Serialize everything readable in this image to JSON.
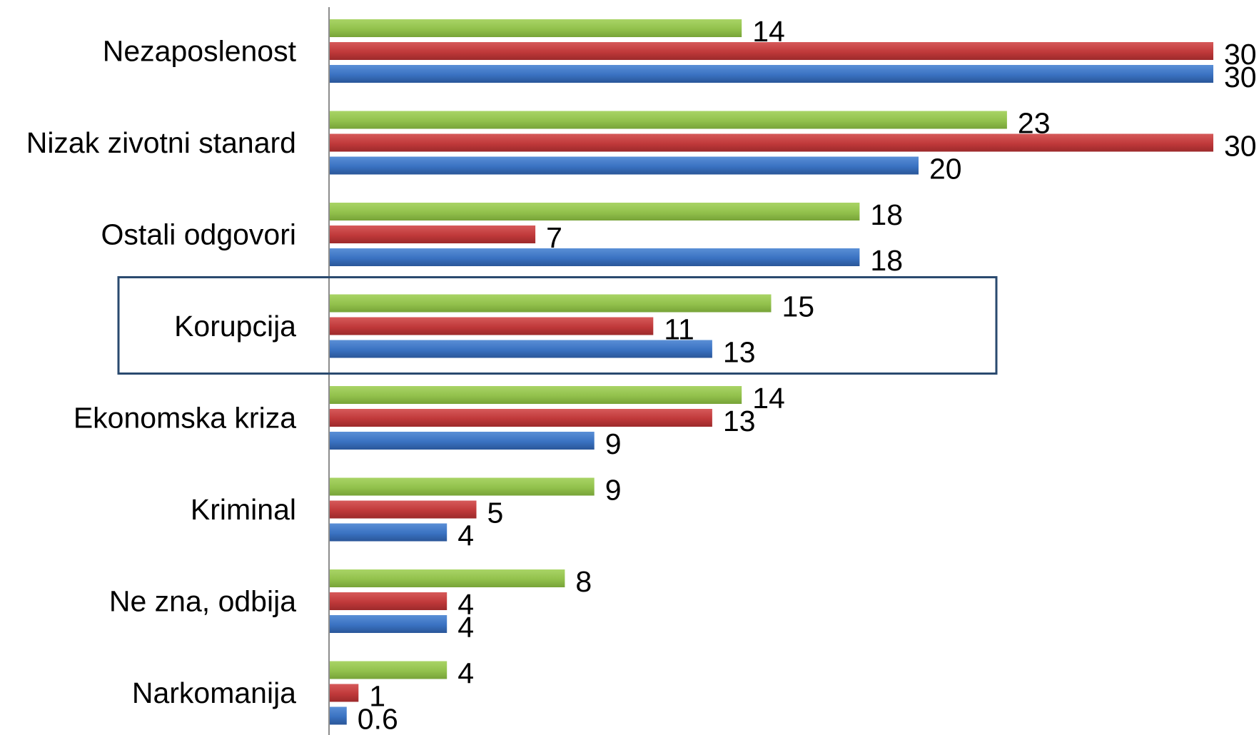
{
  "chart_data": {
    "type": "bar",
    "orientation": "horizontal",
    "categories": [
      "Nezaposlenost",
      "Nizak zivotni stanard",
      "Ostali odgovori",
      "Korupcija",
      "Ekonomska kriza",
      "Kriminal",
      "Ne zna, odbija",
      "Narkomanija"
    ],
    "series": [
      {
        "color": "#92c14c",
        "values": [
          14,
          23,
          18,
          15,
          14,
          9,
          8,
          4
        ]
      },
      {
        "color": "#c0393a",
        "values": [
          30,
          30,
          7,
          11,
          13,
          5,
          4,
          1
        ]
      },
      {
        "color": "#3a72c2",
        "values": [
          30,
          20,
          18,
          13,
          9,
          4,
          4,
          0.6
        ]
      }
    ],
    "value_labels": [
      [
        "14",
        "23",
        "18",
        "15",
        "14",
        "9",
        "8",
        "4"
      ],
      [
        "30",
        "30",
        "7",
        "11",
        "13",
        "5",
        "4",
        "1"
      ],
      [
        "30",
        "20",
        "18",
        "13",
        "9",
        "4",
        "4",
        "0.6"
      ]
    ],
    "highlighted_category": "Korupcija",
    "highlight_color": "#2a4a6f",
    "xlim": [
      0,
      30
    ],
    "grid": false,
    "legend": "none",
    "title": "",
    "xlabel": "",
    "ylabel": ""
  }
}
